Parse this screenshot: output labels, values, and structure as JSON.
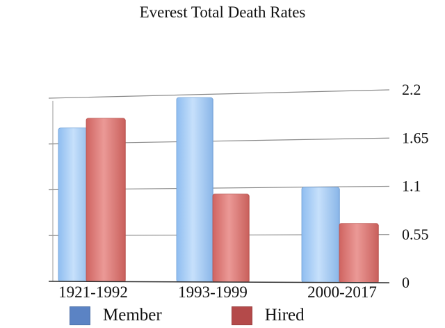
{
  "chart_data": {
    "type": "bar",
    "title": "Everest Total Death Rates",
    "xlabel": "",
    "ylabel": "",
    "categories": [
      "1921-1992",
      "1993-1999",
      "2000-2017"
    ],
    "series": [
      {
        "name": "Member",
        "values": [
          1.84,
          2.17,
          1.1
        ],
        "color": "#a9cdf5",
        "swatch": "#5b83c4",
        "edge": "#6f9fd6"
      },
      {
        "name": "Hired",
        "values": [
          1.95,
          1.03,
          0.68
        ],
        "color": "#e17f7c",
        "swatch": "#b44a4a",
        "edge": "#b8534f"
      }
    ],
    "yticks": [
      "0",
      "0.55",
      "1.1",
      "1.65",
      "2.2"
    ],
    "ylim": [
      0,
      2.2
    ],
    "grid": true,
    "legend": "bottom"
  }
}
